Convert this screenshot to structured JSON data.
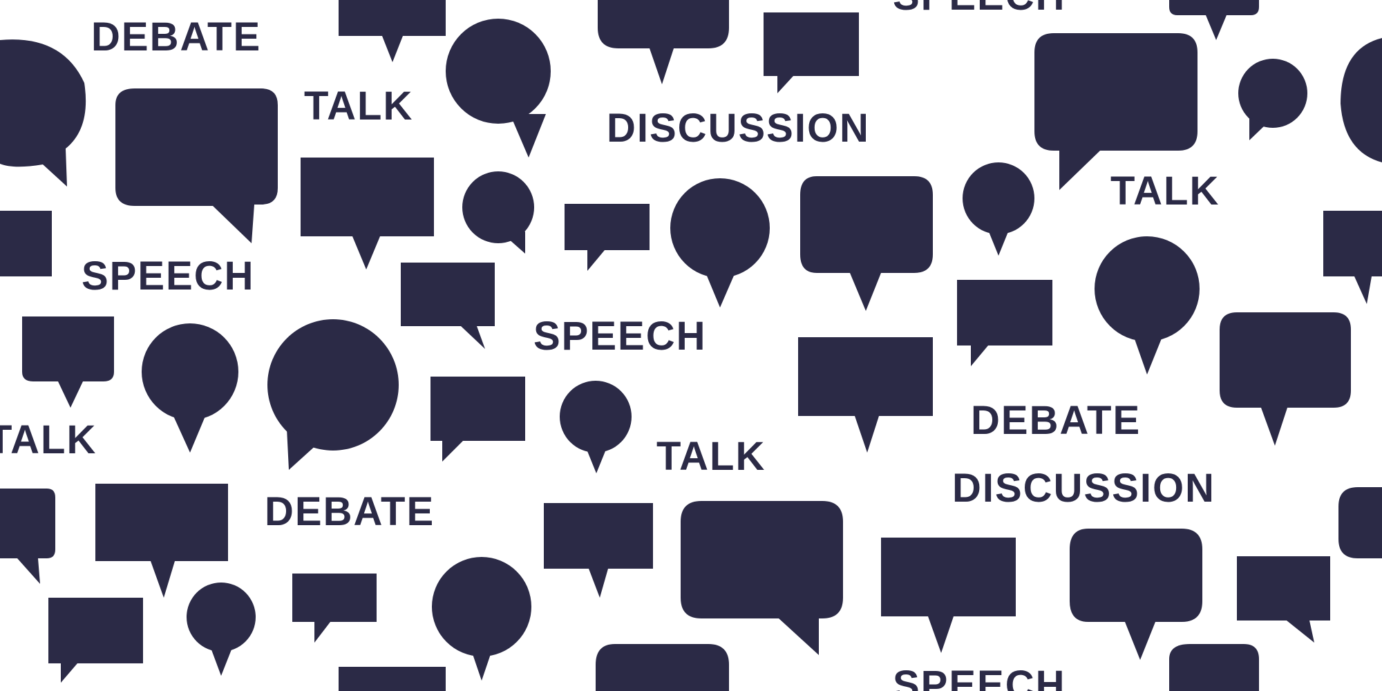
{
  "colors": {
    "background": "#ffffff",
    "ink": "#2b2a46"
  },
  "words": {
    "debate_1": "DEBATE",
    "talk_1": "TALK",
    "discussion_1": "DISCUSSION",
    "speech_top": "SPEECH",
    "talk_2": "TALK",
    "speech_1": "SPEECH",
    "speech_2": "SPEECH",
    "talk_3": "TALK",
    "talk_4": "TALK",
    "debate_2": "DEBATE",
    "discussion_2": "DISCUSSION",
    "debate_3": "DEBATE",
    "speech_bottom": "SPEECH"
  },
  "icons": {
    "bubble_shape": "speech-bubble-icon"
  }
}
